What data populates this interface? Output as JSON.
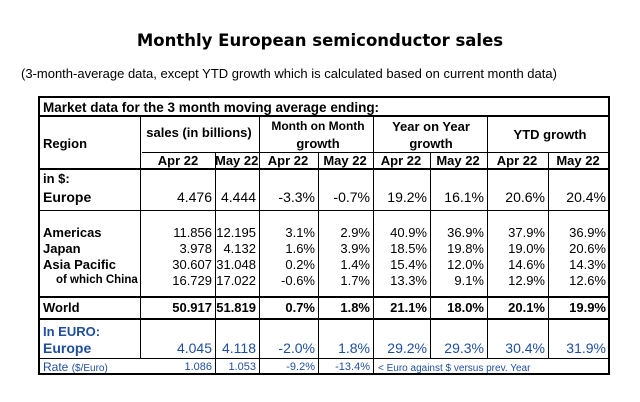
{
  "title": "Monthly European semiconductor sales",
  "subtitle": "(3-month-average data, except YTD growth which is calculated based on current month data)",
  "table": {
    "caption": "Market data for the 3 month moving average ending:",
    "header": {
      "region": "Region",
      "sales": "sales (in billions)",
      "mom": [
        "Month on Month",
        "growth"
      ],
      "yoy": [
        "Year on Year",
        "growth"
      ],
      "ytd": "YTD growth",
      "months": [
        "Apr 22",
        "May 22",
        "Apr 22",
        "May 22",
        "Apr 22",
        "May 22",
        "Apr 22",
        "May 22"
      ]
    },
    "usd_label": "in $:",
    "euro_label": "In EURO:",
    "rows": {
      "europe": {
        "label": "Europe",
        "v": [
          "4.476",
          "4.444",
          "-3.3%",
          "-0.7%",
          "19.2%",
          "16.1%",
          "20.6%",
          "20.4%"
        ]
      },
      "americas": {
        "label": "Americas",
        "v": [
          "11.856",
          "12.195",
          "3.1%",
          "2.9%",
          "40.9%",
          "36.9%",
          "37.9%",
          "36.9%"
        ]
      },
      "japan": {
        "label": "Japan",
        "v": [
          "3.978",
          "4.132",
          "1.6%",
          "3.9%",
          "18.5%",
          "19.8%",
          "19.0%",
          "20.6%"
        ]
      },
      "asia": {
        "label": "Asia Pacific",
        "v": [
          "30.607",
          "31.048",
          "0.2%",
          "1.4%",
          "15.4%",
          "12.0%",
          "14.6%",
          "14.3%"
        ]
      },
      "china": {
        "label": "of which China",
        "v": [
          "16.729",
          "17.022",
          "-0.6%",
          "1.7%",
          "13.3%",
          "9.1%",
          "12.9%",
          "12.6%"
        ]
      },
      "world": {
        "label": "World",
        "v": [
          "50.917",
          "51.819",
          "0.7%",
          "1.8%",
          "21.1%",
          "18.0%",
          "20.1%",
          "19.9%"
        ]
      },
      "europe_eur": {
        "label": "Europe",
        "v": [
          "4.045",
          "4.118",
          "-2.0%",
          "1.8%",
          "29.2%",
          "29.3%",
          "30.4%",
          "31.9%"
        ]
      },
      "rate": {
        "label": "Rate",
        "label_note": "($/Euro)",
        "v": [
          "1.086",
          "1.053",
          "-9.2%",
          "-13.4%"
        ],
        "note": "< Euro against $ versus prev. Year"
      }
    }
  },
  "colors": {
    "euro_text": "#1f4e9e"
  }
}
